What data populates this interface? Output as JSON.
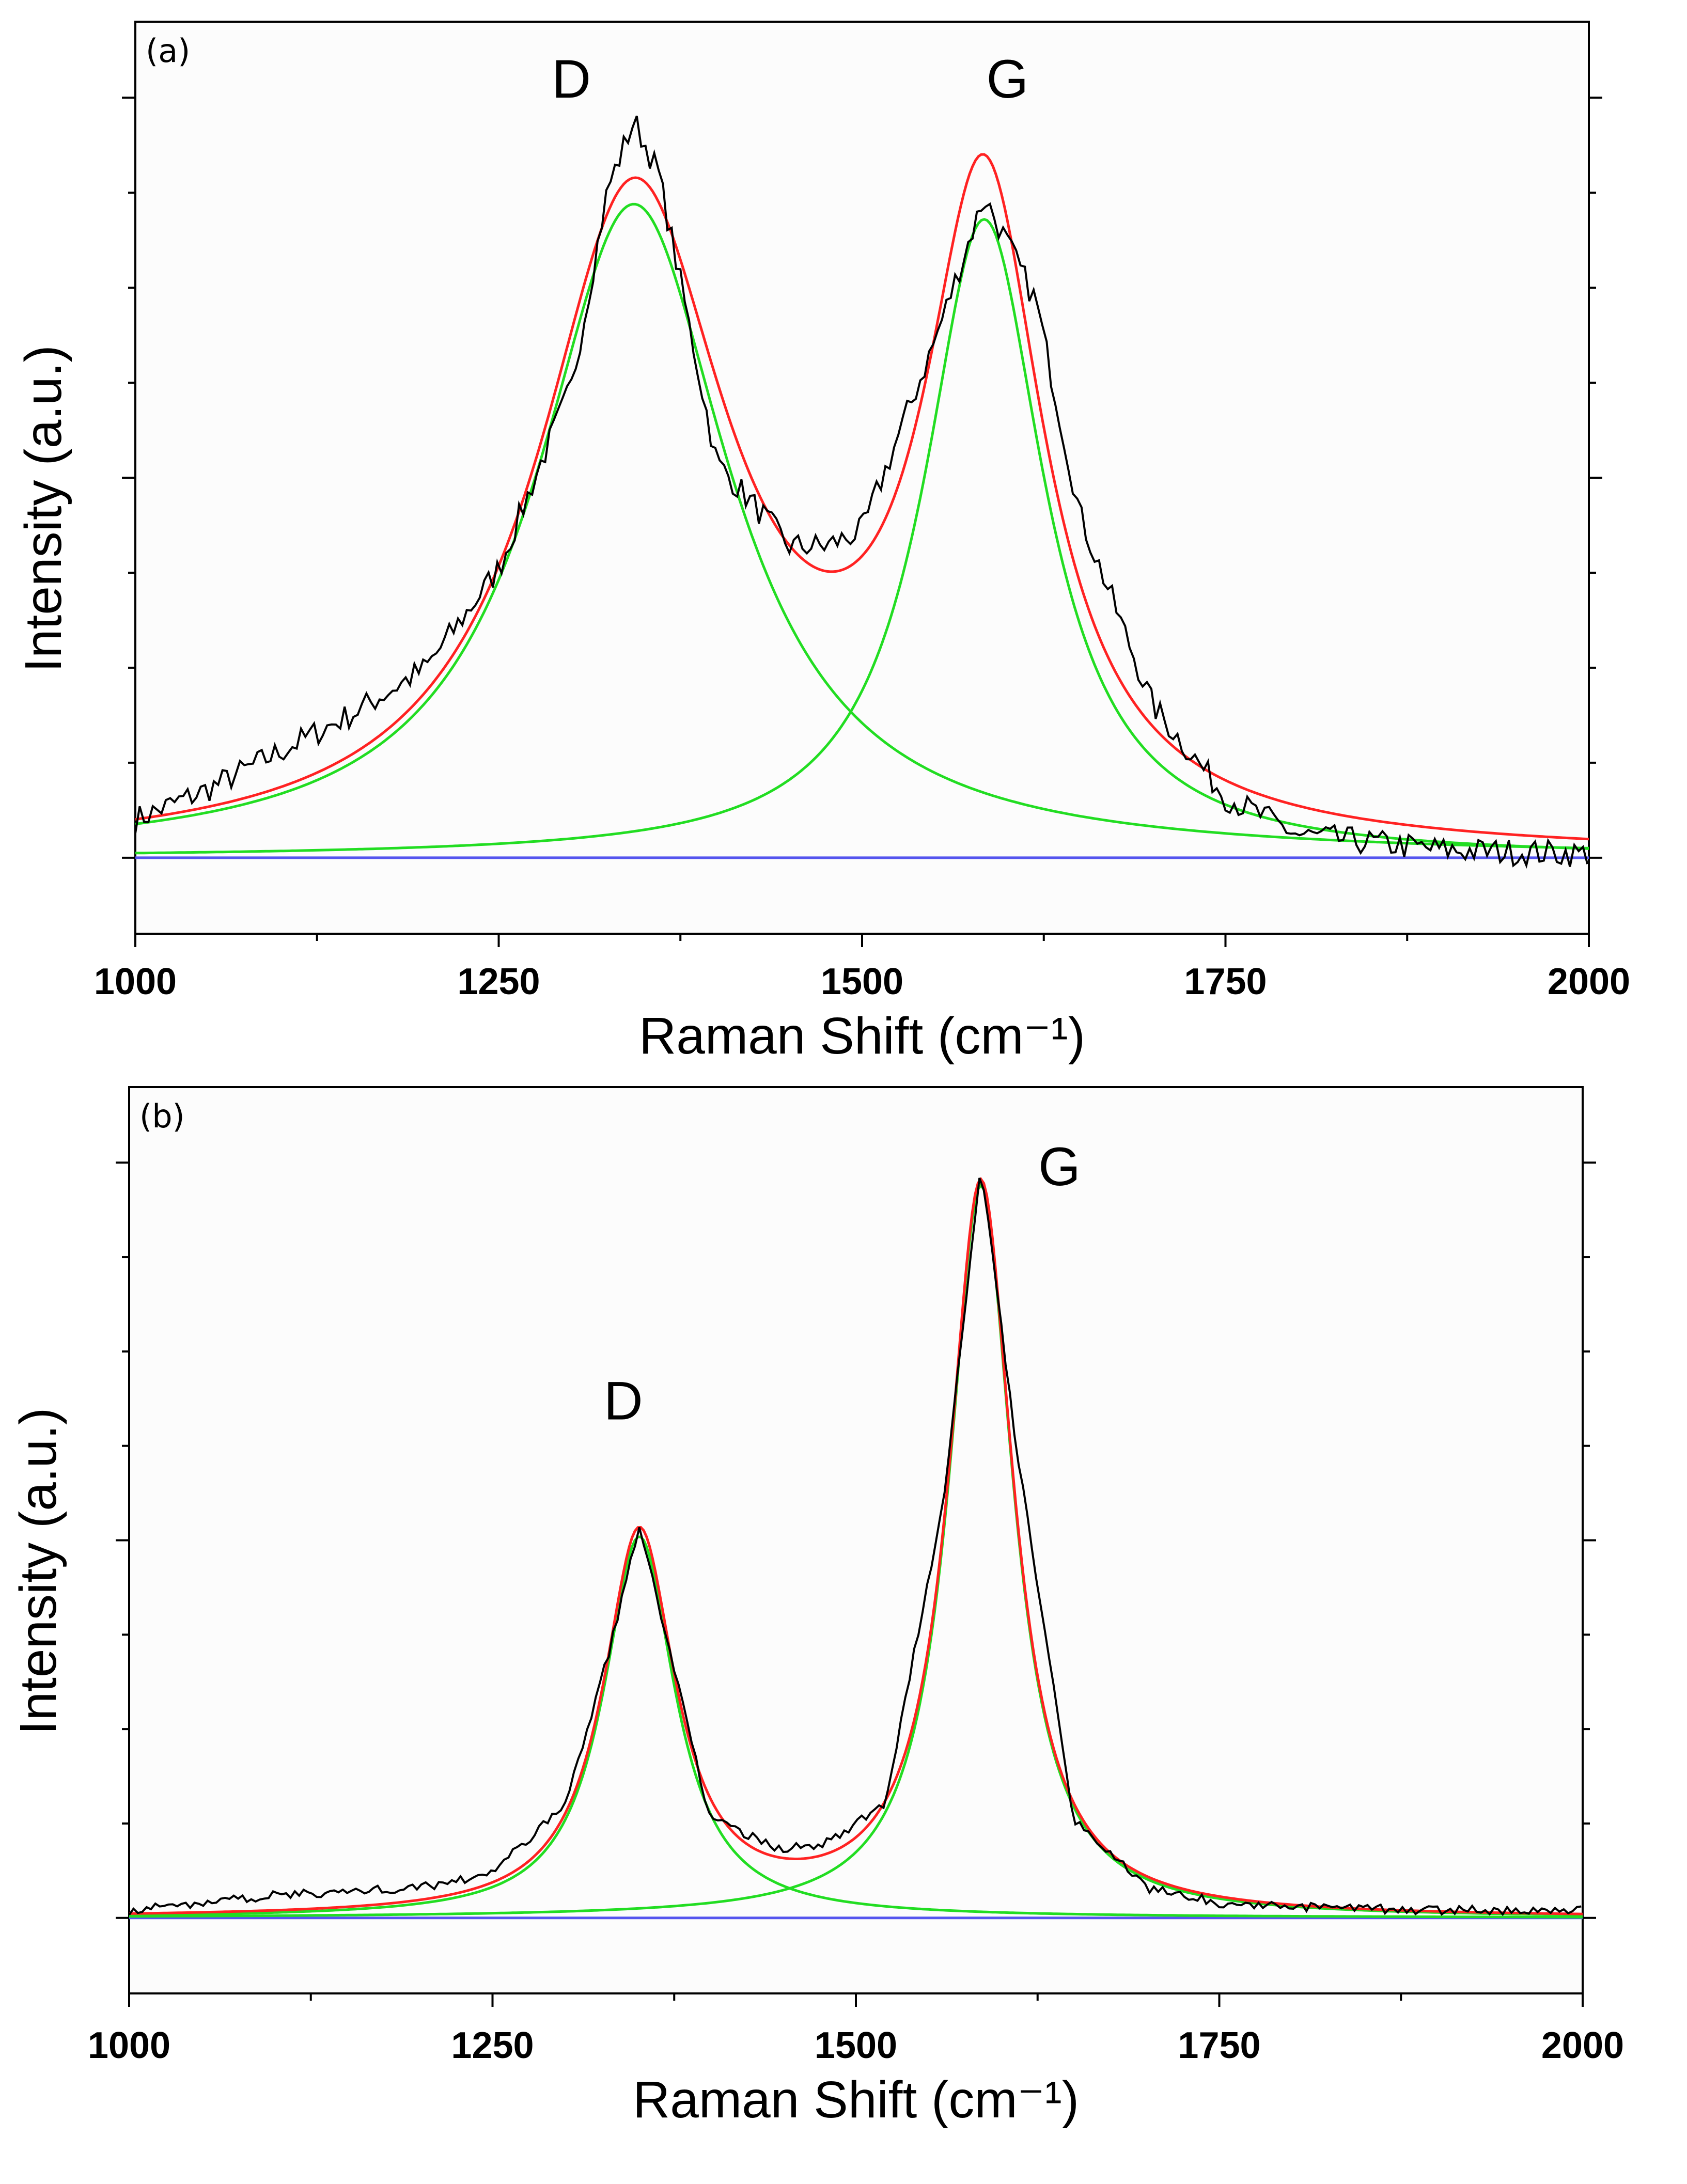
{
  "chart_data": [
    {
      "type": "line",
      "panel_label": "(a)",
      "xlabel": "Raman Shift (cm⁻¹)",
      "ylabel": "Intensity (a.u.)",
      "xlim": [
        1000,
        2000
      ],
      "ylim": [
        -0.1,
        1.1
      ],
      "xticks": [
        1000,
        1250,
        1500,
        1750,
        2000
      ],
      "xtick_labels": [
        "1000",
        "1250",
        "1500",
        "1750",
        "2000"
      ],
      "annotations": [
        {
          "text": "D",
          "x": 1300,
          "y": 1.0
        },
        {
          "text": "G",
          "x": 1600,
          "y": 1.0
        }
      ],
      "baseline": 0,
      "components": [
        {
          "name": "D band",
          "center": 1343,
          "fwhm": 160,
          "amplitude": 0.86
        },
        {
          "name": "G band",
          "center": 1584,
          "fwhm": 100,
          "amplitude": 0.84
        }
      ],
      "series": [
        {
          "name": "Measured spectrum",
          "color": "#000000",
          "noise": 0.018,
          "x": [
            1000,
            1050,
            1100,
            1150,
            1200,
            1250,
            1300,
            1325,
            1343,
            1360,
            1400,
            1450,
            1475,
            1500,
            1550,
            1584,
            1620,
            1650,
            1700,
            1750,
            1800,
            1900,
            2000
          ],
          "y": [
            0.05,
            0.09,
            0.14,
            0.19,
            0.25,
            0.38,
            0.62,
            0.88,
            0.97,
            0.9,
            0.52,
            0.41,
            0.41,
            0.43,
            0.68,
            0.87,
            0.73,
            0.45,
            0.2,
            0.08,
            0.03,
            0.01,
            0.005
          ]
        },
        {
          "name": "Cumulative fit",
          "color": "#ff2222"
        },
        {
          "name": "Lorentzian components",
          "color": "#22dd22"
        },
        {
          "name": "Baseline",
          "color": "#5555ee"
        }
      ]
    },
    {
      "type": "line",
      "panel_label": "(b)",
      "xlabel": "Raman Shift (cm⁻¹)",
      "ylabel": "Intensity (a.u.)",
      "xlim": [
        1000,
        2000
      ],
      "ylim": [
        -0.1,
        1.1
      ],
      "xticks": [
        1000,
        1250,
        1500,
        1750,
        2000
      ],
      "xtick_labels": [
        "1000",
        "1250",
        "1500",
        "1750",
        "2000"
      ],
      "annotations": [
        {
          "text": "D",
          "x": 1340,
          "y": 0.66
        },
        {
          "text": "G",
          "x": 1640,
          "y": 0.97
        }
      ],
      "baseline": 0,
      "components": [
        {
          "name": "D band",
          "center": 1351,
          "fwhm": 60,
          "amplitude": 0.505
        },
        {
          "name": "G band",
          "center": 1586,
          "fwhm": 54,
          "amplitude": 0.97
        }
      ],
      "series": [
        {
          "name": "Measured spectrum",
          "color": "#000000",
          "noise": 0.006,
          "x": [
            1000,
            1100,
            1200,
            1250,
            1300,
            1330,
            1351,
            1370,
            1400,
            1450,
            1480,
            1520,
            1560,
            1586,
            1610,
            1650,
            1700,
            1750,
            1800,
            1900,
            2000
          ],
          "y": [
            0.01,
            0.03,
            0.04,
            0.06,
            0.15,
            0.35,
            0.52,
            0.37,
            0.13,
            0.09,
            0.1,
            0.15,
            0.55,
            1.0,
            0.63,
            0.13,
            0.04,
            0.02,
            0.015,
            0.01,
            0.01
          ]
        },
        {
          "name": "Cumulative fit",
          "color": "#ff2222"
        },
        {
          "name": "Lorentzian components",
          "color": "#22dd22"
        },
        {
          "name": "Baseline",
          "color": "#5555ee"
        }
      ]
    }
  ]
}
